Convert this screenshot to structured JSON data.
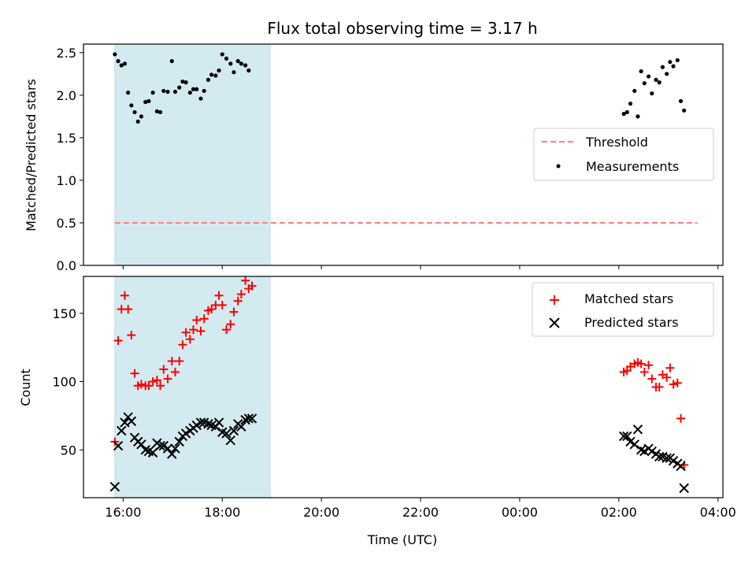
{
  "figure": {
    "title": "Flux total observing time = 3.17 h"
  },
  "chart_data": [
    {
      "type": "scatter",
      "panel": "top",
      "xlabel": "",
      "ylabel": "Matched/Predicted stars",
      "xlim": [
        "15:12",
        "04:06"
      ],
      "ylim": [
        0,
        2.6
      ],
      "yticks": [
        "0.0",
        "0.5",
        "1.0",
        "1.5",
        "2.0",
        "2.5"
      ],
      "xticks": [
        "16:00",
        "18:00",
        "20:00",
        "22:00",
        "00:00",
        "02:00",
        "04:00"
      ],
      "xtick_labels_visible": false,
      "shaded_interval": [
        "15:50",
        "18:58"
      ],
      "legend": {
        "position": "center-right",
        "entries": [
          "Threshold",
          "Measurements"
        ]
      },
      "colors": {
        "threshold": "#ff7f7f",
        "measurements": "#000000",
        "shade": "#d4eaf1"
      },
      "threshold": {
        "name": "Threshold",
        "y": 0.5,
        "x_start": "15:50",
        "x_end": "03:35"
      },
      "series": [
        {
          "name": "Measurements",
          "points": [
            [
              "15:50",
              2.48
            ],
            [
              "15:54",
              2.4
            ],
            [
              "15:58",
              2.35
            ],
            [
              "16:02",
              2.37
            ],
            [
              "16:06",
              2.03
            ],
            [
              "16:10",
              1.88
            ],
            [
              "16:14",
              1.8
            ],
            [
              "16:18",
              1.69
            ],
            [
              "16:22",
              1.75
            ],
            [
              "16:27",
              1.92
            ],
            [
              "16:31",
              1.93
            ],
            [
              "16:36",
              2.03
            ],
            [
              "16:41",
              1.81
            ],
            [
              "16:45",
              1.8
            ],
            [
              "16:49",
              2.05
            ],
            [
              "16:54",
              2.04
            ],
            [
              "16:59",
              2.4
            ],
            [
              "17:03",
              2.04
            ],
            [
              "17:08",
              2.09
            ],
            [
              "17:12",
              2.16
            ],
            [
              "17:16",
              2.15
            ],
            [
              "17:21",
              2.03
            ],
            [
              "17:25",
              2.07
            ],
            [
              "17:29",
              2.07
            ],
            [
              "17:34",
              1.96
            ],
            [
              "17:38",
              2.05
            ],
            [
              "17:43",
              2.18
            ],
            [
              "17:47",
              2.24
            ],
            [
              "17:52",
              2.23
            ],
            [
              "17:56",
              2.29
            ],
            [
              "18:00",
              2.48
            ],
            [
              "18:05",
              2.43
            ],
            [
              "18:10",
              2.37
            ],
            [
              "18:14",
              2.27
            ],
            [
              "18:19",
              2.4
            ],
            [
              "18:23",
              2.37
            ],
            [
              "18:28",
              2.35
            ],
            [
              "18:32",
              2.29
            ],
            [
              "02:06",
              1.78
            ],
            [
              "02:10",
              1.8
            ],
            [
              "02:14",
              1.9
            ],
            [
              "02:19",
              2.05
            ],
            [
              "02:23",
              1.75
            ],
            [
              "02:27",
              2.28
            ],
            [
              "02:31",
              2.14
            ],
            [
              "02:36",
              2.22
            ],
            [
              "02:40",
              2.02
            ],
            [
              "02:45",
              2.18
            ],
            [
              "02:49",
              2.15
            ],
            [
              "02:53",
              2.33
            ],
            [
              "02:58",
              2.25
            ],
            [
              "03:02",
              2.39
            ],
            [
              "03:06",
              2.34
            ],
            [
              "03:11",
              2.41
            ],
            [
              "03:15",
              1.93
            ],
            [
              "03:19",
              1.82
            ]
          ]
        }
      ]
    },
    {
      "type": "scatter",
      "panel": "bottom",
      "xlabel": "Time (UTC)",
      "ylabel": "Count",
      "xlim": [
        "15:12",
        "04:06"
      ],
      "ylim": [
        15,
        177
      ],
      "yticks": [
        "50",
        "100",
        "150"
      ],
      "xticks": [
        "16:00",
        "18:00",
        "20:00",
        "22:00",
        "00:00",
        "02:00",
        "04:00"
      ],
      "shaded_interval": [
        "15:50",
        "18:58"
      ],
      "legend": {
        "position": "top-right",
        "entries": [
          "Matched stars",
          "Predicted stars"
        ]
      },
      "colors": {
        "matched": "#ff0000",
        "predicted": "#000000",
        "shade": "#d4eaf1"
      },
      "series": [
        {
          "name": "Matched stars",
          "marker": "+",
          "points": [
            [
              "15:50",
              56
            ],
            [
              "15:54",
              130
            ],
            [
              "15:58",
              153
            ],
            [
              "16:02",
              163
            ],
            [
              "16:06",
              153
            ],
            [
              "16:10",
              134
            ],
            [
              "16:14",
              106
            ],
            [
              "16:18",
              97
            ],
            [
              "16:22",
              98
            ],
            [
              "16:27",
              97
            ],
            [
              "16:31",
              97
            ],
            [
              "16:36",
              100
            ],
            [
              "16:41",
              101
            ],
            [
              "16:45",
              97
            ],
            [
              "16:49",
              109
            ],
            [
              "16:54",
              102
            ],
            [
              "16:59",
              115
            ],
            [
              "17:03",
              107
            ],
            [
              "17:08",
              115
            ],
            [
              "17:12",
              127
            ],
            [
              "17:16",
              136
            ],
            [
              "17:21",
              131
            ],
            [
              "17:25",
              138
            ],
            [
              "17:29",
              145
            ],
            [
              "17:34",
              137
            ],
            [
              "17:38",
              146
            ],
            [
              "17:43",
              152
            ],
            [
              "17:47",
              153
            ],
            [
              "17:52",
              156
            ],
            [
              "17:56",
              163
            ],
            [
              "18:00",
              156
            ],
            [
              "18:05",
              138
            ],
            [
              "18:10",
              142
            ],
            [
              "18:14",
              151
            ],
            [
              "18:19",
              159
            ],
            [
              "18:23",
              164
            ],
            [
              "18:28",
              174
            ],
            [
              "18:32",
              168
            ],
            [
              "18:36",
              170
            ],
            [
              "02:06",
              107
            ],
            [
              "02:10",
              108
            ],
            [
              "02:14",
              111
            ],
            [
              "02:19",
              113
            ],
            [
              "02:23",
              114
            ],
            [
              "02:27",
              113
            ],
            [
              "02:31",
              107
            ],
            [
              "02:36",
              112
            ],
            [
              "02:40",
              102
            ],
            [
              "02:45",
              96
            ],
            [
              "02:49",
              96
            ],
            [
              "02:53",
              105
            ],
            [
              "02:58",
              103
            ],
            [
              "03:02",
              110
            ],
            [
              "03:06",
              98
            ],
            [
              "03:11",
              99
            ],
            [
              "03:15",
              73
            ],
            [
              "03:19",
              39
            ]
          ]
        },
        {
          "name": "Predicted stars",
          "marker": "x",
          "points": [
            [
              "15:50",
              23
            ],
            [
              "15:54",
              53
            ],
            [
              "15:58",
              64
            ],
            [
              "16:02",
              70
            ],
            [
              "16:06",
              74
            ],
            [
              "16:10",
              71
            ],
            [
              "16:14",
              59
            ],
            [
              "16:18",
              56
            ],
            [
              "16:22",
              54
            ],
            [
              "16:27",
              50
            ],
            [
              "16:31",
              49
            ],
            [
              "16:36",
              48
            ],
            [
              "16:41",
              55
            ],
            [
              "16:45",
              53
            ],
            [
              "16:49",
              53
            ],
            [
              "16:54",
              51
            ],
            [
              "16:59",
              47
            ],
            [
              "17:03",
              51
            ],
            [
              "17:08",
              56
            ],
            [
              "17:12",
              60
            ],
            [
              "17:16",
              62
            ],
            [
              "17:21",
              64
            ],
            [
              "17:25",
              66
            ],
            [
              "17:29",
              68
            ],
            [
              "17:34",
              70
            ],
            [
              "17:38",
              70
            ],
            [
              "17:43",
              69
            ],
            [
              "17:47",
              68
            ],
            [
              "17:52",
              67
            ],
            [
              "17:56",
              70
            ],
            [
              "18:00",
              63
            ],
            [
              "18:05",
              62
            ],
            [
              "18:10",
              57
            ],
            [
              "18:14",
              64
            ],
            [
              "18:19",
              69
            ],
            [
              "18:23",
              67
            ],
            [
              "18:28",
              72
            ],
            [
              "18:32",
              73
            ],
            [
              "18:36",
              73
            ],
            [
              "02:06",
              60
            ],
            [
              "02:10",
              60
            ],
            [
              "02:14",
              56
            ],
            [
              "02:19",
              54
            ],
            [
              "02:23",
              65
            ],
            [
              "02:27",
              50
            ],
            [
              "02:31",
              49
            ],
            [
              "02:36",
              51
            ],
            [
              "02:40",
              49
            ],
            [
              "02:45",
              47
            ],
            [
              "02:49",
              45
            ],
            [
              "02:53",
              45
            ],
            [
              "02:58",
              44
            ],
            [
              "03:02",
              44
            ],
            [
              "03:06",
              42
            ],
            [
              "03:11",
              40
            ],
            [
              "03:15",
              38
            ],
            [
              "03:19",
              22
            ]
          ]
        }
      ]
    }
  ]
}
